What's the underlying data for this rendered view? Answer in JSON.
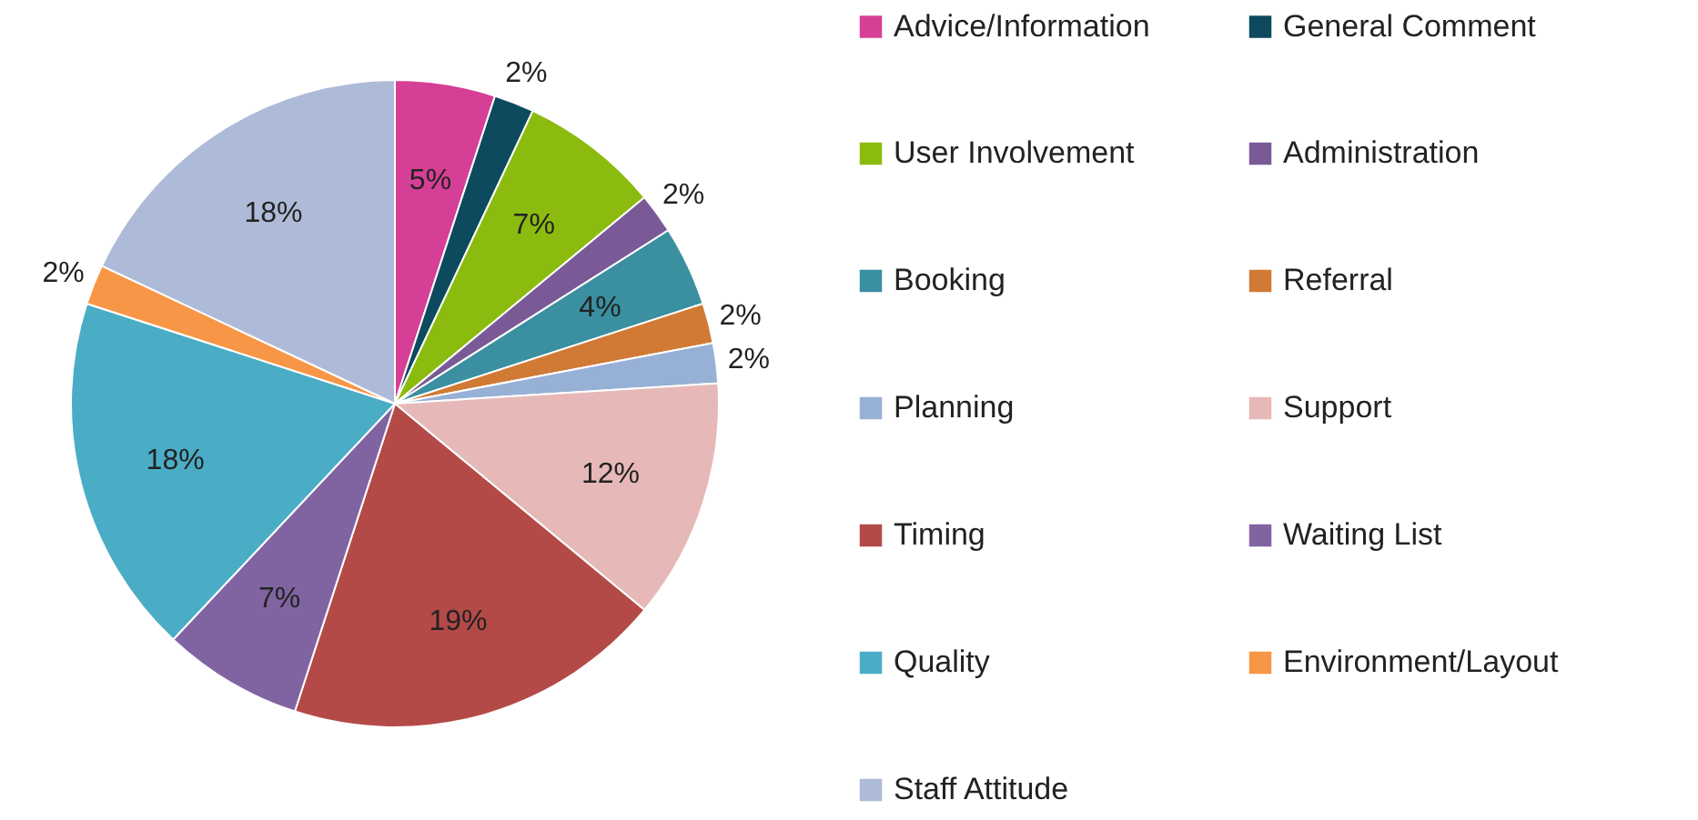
{
  "chart_data": {
    "type": "pie",
    "categories": [
      "Advice/Information",
      "General Comment",
      "User Involvement",
      "Administration",
      "Booking",
      "Referral",
      "Planning",
      "Support",
      "Timing",
      "Waiting List",
      "Quality",
      "Environment/Layout",
      "Staff Attitude"
    ],
    "values": [
      5,
      2,
      7,
      2,
      4,
      2,
      2,
      12,
      19,
      7,
      18,
      2,
      18
    ],
    "value_labels": [
      "5%",
      "2%",
      "7%",
      "2%",
      "4%",
      "2%",
      "2%",
      "12%",
      "19%",
      "7%",
      "18%",
      "2%",
      "18%"
    ],
    "colors": [
      "#d63f96",
      "#0d4a5e",
      "#8bbb0f",
      "#7a5a96",
      "#3a8fa0",
      "#d17a35",
      "#97b0d6",
      "#e6b9b8",
      "#b34a47",
      "#8064a2",
      "#4bacc6",
      "#f79646",
      "#aebbd8"
    ],
    "legend": "right"
  }
}
